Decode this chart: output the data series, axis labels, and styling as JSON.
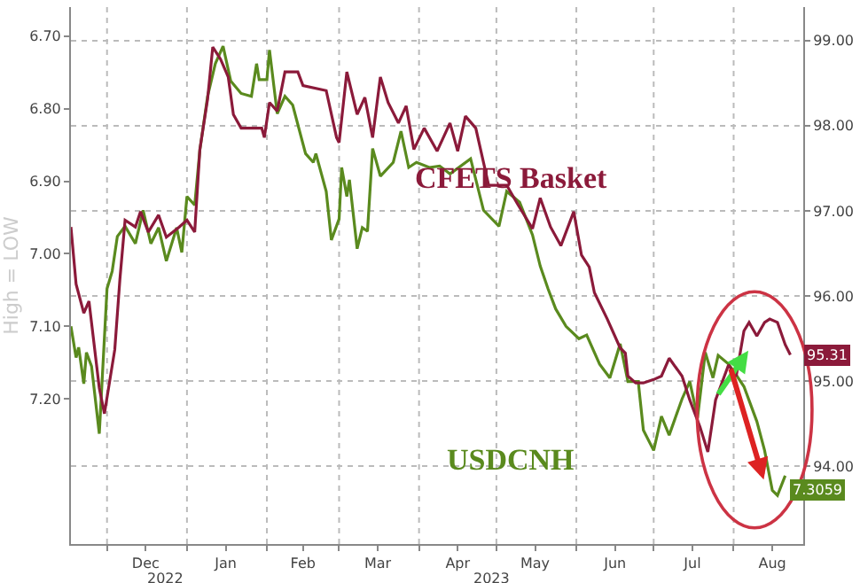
{
  "chart_data": {
    "type": "line",
    "ylabel": "High = LOW",
    "legend": false,
    "marker": "none",
    "line_style": "solid",
    "grid": true,
    "annotations": [
      "2022",
      "2023"
    ],
    "xlim": [
      "2022-11-17",
      "2023-08-28"
    ],
    "xticks": [
      {
        "value": "2022-12-01",
        "label": null
      },
      {
        "value": "2022-12-16",
        "label": "Dec"
      },
      {
        "value": "2023-01-01",
        "label": null
      },
      {
        "value": "2023-01-16",
        "label": "Jan"
      },
      {
        "value": "2023-02-01",
        "label": null
      },
      {
        "value": "2023-02-15",
        "label": "Feb"
      },
      {
        "value": "2023-03-01",
        "label": null
      },
      {
        "value": "2023-03-16",
        "label": "Mar"
      },
      {
        "value": "2023-04-01",
        "label": null
      },
      {
        "value": "2023-04-16",
        "label": "Apr"
      },
      {
        "value": "2023-05-01",
        "label": null
      },
      {
        "value": "2023-05-16",
        "label": "May"
      },
      {
        "value": "2023-06-01",
        "label": null
      },
      {
        "value": "2023-06-16",
        "label": "Jun"
      },
      {
        "value": "2023-07-01",
        "label": null
      },
      {
        "value": "2023-07-16",
        "label": "Jul"
      },
      {
        "value": "2023-08-01",
        "label": null
      },
      {
        "value": "2023-08-16",
        "label": "Aug"
      }
    ],
    "ylim": [
      7.4,
      6.66
    ],
    "yticks": [
      {
        "value": 6.7,
        "label": "6.70"
      },
      {
        "value": 6.8,
        "label": "6.80"
      },
      {
        "value": 6.9,
        "label": "6.90"
      },
      {
        "value": 7.0,
        "label": "7.00"
      },
      {
        "value": 7.1,
        "label": "7.10"
      },
      {
        "value": 7.2,
        "label": "7.20"
      }
    ],
    "y2lim": [
      93.09,
      99.39
    ],
    "y2ticks": [
      {
        "value": 94,
        "label": "94.00"
      },
      {
        "value": 95,
        "label": "95.00"
      },
      {
        "value": 96,
        "label": "96.00"
      },
      {
        "value": 97,
        "label": "97.00"
      },
      {
        "value": 98,
        "label": "98.00"
      },
      {
        "value": 99,
        "label": "99.00"
      }
    ],
    "series": [
      {
        "name": "CFETS Basket",
        "color": "#8b1a3a",
        "axis": "y2",
        "x": [
          "2022-11-17",
          "2022-11-19",
          "2022-11-22",
          "2022-11-24",
          "2022-11-28",
          "2022-11-30",
          "2022-12-04",
          "2022-12-06",
          "2022-12-08",
          "2022-12-12",
          "2022-12-14",
          "2022-12-17",
          "2022-12-21",
          "2022-12-24",
          "2022-12-29",
          "2023-01-01",
          "2023-01-04",
          "2023-01-06",
          "2023-01-09",
          "2023-01-11",
          "2023-01-14",
          "2023-01-17",
          "2023-01-19",
          "2023-01-22",
          "2023-01-30",
          "2023-01-31",
          "2023-02-02",
          "2023-02-05",
          "2023-02-08",
          "2023-02-13",
          "2023-02-15",
          "2023-02-24",
          "2023-02-28",
          "2023-03-01",
          "2023-03-04",
          "2023-03-08",
          "2023-03-11",
          "2023-03-14",
          "2023-03-17",
          "2023-03-20",
          "2023-03-24",
          "2023-03-27",
          "2023-03-30",
          "2023-04-03",
          "2023-04-08",
          "2023-04-13",
          "2023-04-16",
          "2023-04-19",
          "2023-04-23",
          "2023-04-28",
          "2023-05-05",
          "2023-05-09",
          "2023-05-15",
          "2023-05-18",
          "2023-05-22",
          "2023-05-26",
          "2023-05-31",
          "2023-06-03",
          "2023-06-06",
          "2023-06-08",
          "2023-06-13",
          "2023-06-18",
          "2023-06-20",
          "2023-06-21",
          "2023-06-24",
          "2023-06-27",
          "2023-07-01",
          "2023-07-04",
          "2023-07-07",
          "2023-07-12",
          "2023-07-15",
          "2023-07-19",
          "2023-07-22",
          "2023-07-25",
          "2023-07-30",
          "2023-08-02",
          "2023-08-05",
          "2023-08-07",
          "2023-08-10",
          "2023-08-13",
          "2023-08-15",
          "2023-08-18",
          "2023-08-21",
          "2023-08-23"
        ],
        "values": [
          96.81,
          96.14,
          95.8,
          95.94,
          94.92,
          94.62,
          95.37,
          96.2,
          96.89,
          96.81,
          96.99,
          96.75,
          96.95,
          96.69,
          96.81,
          96.89,
          96.75,
          97.72,
          98.31,
          98.92,
          98.78,
          98.57,
          98.13,
          97.97,
          97.97,
          97.86,
          98.27,
          98.17,
          98.63,
          98.63,
          98.47,
          98.41,
          97.86,
          97.8,
          98.63,
          98.13,
          98.33,
          97.86,
          98.57,
          98.27,
          98.03,
          98.23,
          97.72,
          97.97,
          97.7,
          98.03,
          97.7,
          98.11,
          97.97,
          97.3,
          97.3,
          97.09,
          96.79,
          97.15,
          96.81,
          96.59,
          96.99,
          96.48,
          96.34,
          96.04,
          95.73,
          95.39,
          95.33,
          95.06,
          94.98,
          94.98,
          95.02,
          95.06,
          95.27,
          95.06,
          94.78,
          94.46,
          94.17,
          94.78,
          95.19,
          95.06,
          95.59,
          95.69,
          95.53,
          95.69,
          95.73,
          95.69,
          95.43,
          95.31
        ],
        "value_labels": [
          null,
          null,
          null,
          null,
          null,
          null,
          null,
          null,
          null,
          null,
          null,
          null,
          null,
          null,
          null,
          null,
          null,
          null,
          null,
          null,
          null,
          null,
          null,
          null,
          null,
          null,
          null,
          null,
          null,
          null,
          null,
          null,
          null,
          null,
          null,
          null,
          null,
          null,
          null,
          null,
          null,
          null,
          null,
          null,
          null,
          null,
          null,
          null,
          null,
          null,
          null,
          null,
          null,
          null,
          null,
          null,
          null,
          null,
          null,
          null,
          null,
          null,
          null,
          null,
          null,
          null,
          null,
          null,
          null,
          null,
          null,
          null,
          null,
          null,
          null,
          null,
          null,
          null,
          null,
          null,
          null,
          null,
          null,
          "95.31"
        ]
      },
      {
        "name": "USDCNH",
        "color": "#5a8a1e",
        "axis": "y",
        "x": [
          "2022-11-17",
          "2022-11-19",
          "2022-11-20",
          "2022-11-22",
          "2022-11-23",
          "2022-11-25",
          "2022-11-28",
          "2022-12-01",
          "2022-12-03",
          "2022-12-05",
          "2022-12-08",
          "2022-12-12",
          "2022-12-15",
          "2022-12-18",
          "2022-12-21",
          "2022-12-24",
          "2022-12-28",
          "2022-12-30",
          "2023-01-01",
          "2023-01-04",
          "2023-01-06",
          "2023-01-09",
          "2023-01-12",
          "2023-01-15",
          "2023-01-18",
          "2023-01-22",
          "2023-01-26",
          "2023-01-28",
          "2023-01-29",
          "2023-02-01",
          "2023-02-02",
          "2023-02-05",
          "2023-02-08",
          "2023-02-11",
          "2023-02-16",
          "2023-02-19",
          "2023-02-20",
          "2023-02-24",
          "2023-02-26",
          "2023-03-01",
          "2023-03-02",
          "2023-03-04",
          "2023-03-05",
          "2023-03-08",
          "2023-03-10",
          "2023-03-12",
          "2023-03-14",
          "2023-03-17",
          "2023-03-22",
          "2023-03-25",
          "2023-03-28",
          "2023-03-31",
          "2023-04-05",
          "2023-04-09",
          "2023-04-13",
          "2023-04-21",
          "2023-04-26",
          "2023-05-02",
          "2023-05-05",
          "2023-05-10",
          "2023-05-15",
          "2023-05-18",
          "2023-05-21",
          "2023-05-24",
          "2023-05-28",
          "2023-06-02",
          "2023-06-05",
          "2023-06-10",
          "2023-06-14",
          "2023-06-18",
          "2023-06-21",
          "2023-06-25",
          "2023-06-27",
          "2023-07-01",
          "2023-07-04",
          "2023-07-07",
          "2023-07-12",
          "2023-07-15",
          "2023-07-18",
          "2023-07-21",
          "2023-07-24",
          "2023-07-26",
          "2023-07-30",
          "2023-08-02",
          "2023-08-05",
          "2023-08-10",
          "2023-08-13",
          "2023-08-16",
          "2023-08-18",
          "2023-08-21"
        ],
        "values": [
          7.1,
          7.143,
          7.129,
          7.179,
          7.136,
          7.155,
          7.248,
          7.048,
          7.024,
          6.976,
          6.962,
          6.986,
          6.94,
          6.986,
          6.964,
          7.01,
          6.964,
          6.998,
          6.921,
          6.933,
          6.857,
          6.783,
          6.738,
          6.714,
          6.762,
          6.779,
          6.783,
          6.738,
          6.76,
          6.76,
          6.719,
          6.807,
          6.783,
          6.795,
          6.862,
          6.874,
          6.862,
          6.914,
          6.981,
          6.952,
          6.881,
          6.921,
          6.898,
          6.993,
          6.964,
          6.969,
          6.855,
          6.893,
          6.874,
          6.831,
          6.881,
          6.874,
          6.881,
          6.879,
          6.89,
          6.869,
          6.94,
          6.962,
          6.914,
          6.929,
          6.974,
          7.017,
          7.048,
          7.076,
          7.1,
          7.117,
          7.112,
          7.152,
          7.171,
          7.124,
          7.176,
          7.176,
          7.243,
          7.271,
          7.224,
          7.25,
          7.2,
          7.176,
          7.226,
          7.136,
          7.171,
          7.14,
          7.152,
          7.167,
          7.183,
          7.231,
          7.271,
          7.326,
          7.333,
          7.3059
        ],
        "value_labels": [
          null,
          null,
          null,
          null,
          null,
          null,
          null,
          null,
          null,
          null,
          null,
          null,
          null,
          null,
          null,
          null,
          null,
          null,
          null,
          null,
          null,
          null,
          null,
          null,
          null,
          null,
          null,
          null,
          null,
          null,
          null,
          null,
          null,
          null,
          null,
          null,
          null,
          null,
          null,
          null,
          null,
          null,
          null,
          null,
          null,
          null,
          null,
          null,
          null,
          null,
          null,
          null,
          null,
          null,
          null,
          null,
          null,
          null,
          null,
          null,
          null,
          null,
          null,
          null,
          null,
          null,
          null,
          null,
          null,
          null,
          null,
          null,
          null,
          null,
          null,
          null,
          null,
          null,
          null,
          null,
          null,
          null,
          null,
          null,
          null,
          null,
          null,
          null,
          null,
          "7.3059"
        ]
      }
    ]
  }
}
